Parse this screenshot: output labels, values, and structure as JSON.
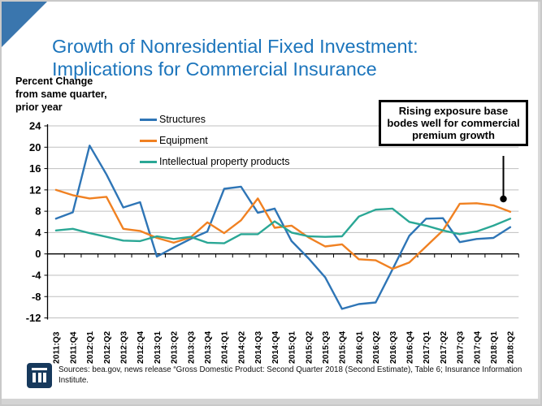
{
  "header": {
    "title": "Growth of Nonresidential Fixed Investment: Implications for Commercial Insurance"
  },
  "chart": {
    "axis_note": "Percent Change\nfrom same quarter,\nprior year",
    "annotation": {
      "text": "Rising exposure base bodes well for commercial premium growth"
    }
  },
  "chart_data": {
    "type": "line",
    "title": "Growth of Nonresidential Fixed Investment",
    "xlabel": "",
    "ylabel": "Percent Change from same quarter, prior year",
    "ylim": [
      -12,
      24
    ],
    "ytick_step": 4,
    "ytick_labels": [
      "24",
      "20",
      "16",
      "12",
      "8",
      "4",
      "0",
      "-4",
      "-8",
      "-12"
    ],
    "grid": true,
    "legend_position": "top-left-inside",
    "categories": [
      "2011:Q3",
      "2011:Q4",
      "2012:Q1",
      "2012:Q2",
      "2012:Q3",
      "2012:Q4",
      "2013:Q1",
      "2013:Q2",
      "2013:Q3",
      "2013:Q4",
      "2014:Q1",
      "2014:Q2",
      "2014:Q3",
      "2014:Q4",
      "2015:Q1",
      "2015:Q2",
      "2015:Q3",
      "2015:Q4",
      "2016:Q1",
      "2016:Q2",
      "2016:Q3",
      "2016:Q4",
      "2017:Q1",
      "2017:Q2",
      "2017:Q3",
      "2017:Q4",
      "2018:Q1",
      "2018:Q2"
    ],
    "series": [
      {
        "name": "Structures",
        "color": "#2e75b6",
        "values": [
          6.6,
          7.8,
          20.3,
          14.9,
          8.7,
          9.7,
          -0.5,
          1.2,
          2.8,
          4.2,
          12.2,
          12.6,
          7.7,
          8.5,
          2.4,
          -0.8,
          -4.4,
          -10.3,
          -9.4,
          -9.1,
          -2.9,
          3.4,
          6.6,
          6.7,
          2.2,
          2.8,
          3.0,
          5.0
        ]
      },
      {
        "name": "Equipment",
        "color": "#f08122",
        "values": [
          12.0,
          11.0,
          10.4,
          10.7,
          4.7,
          4.3,
          3.0,
          2.1,
          3.1,
          5.9,
          3.9,
          6.3,
          10.4,
          4.9,
          5.3,
          3.1,
          1.4,
          1.8,
          -1.0,
          -1.2,
          -2.8,
          -1.6,
          1.4,
          4.4,
          9.4,
          9.5,
          9.1,
          7.9
        ]
      },
      {
        "name": "Intellectual property products",
        "color": "#2aa795",
        "values": [
          4.4,
          4.7,
          3.9,
          3.2,
          2.5,
          2.4,
          3.3,
          2.8,
          3.2,
          2.1,
          2.0,
          3.7,
          3.7,
          6.1,
          4.0,
          3.3,
          3.2,
          3.3,
          7.0,
          8.3,
          8.5,
          6.0,
          5.3,
          4.4,
          3.7,
          4.2,
          5.3,
          6.6
        ]
      }
    ]
  },
  "footer": {
    "source_text": "Sources: bea.gov, news release “Gross Domestic Product: Second Quarter 2018 (Second Estimate), Table 6; Insurance Information Institute."
  },
  "colors": {
    "title_blue": "#1c75bc",
    "corner_triangle_blue": "#3a76ae",
    "gridline_gray": "#bfbfbf",
    "logo_navy": "#17395c"
  }
}
